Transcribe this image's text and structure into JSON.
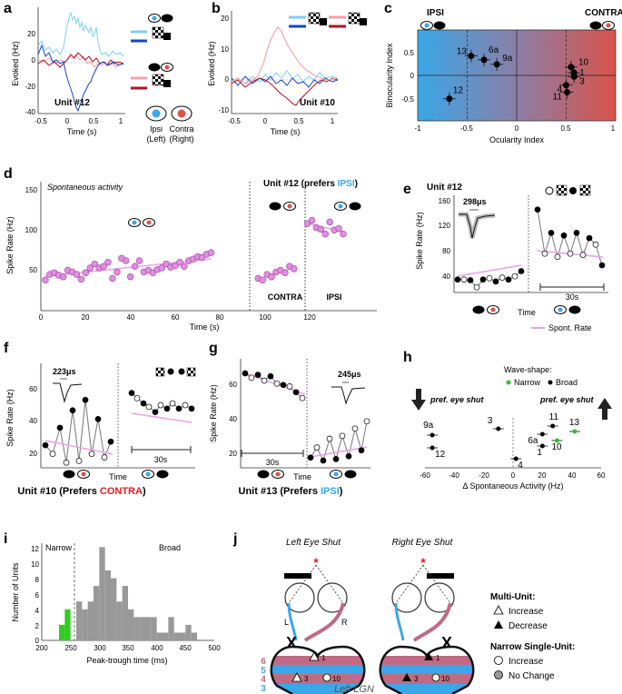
{
  "panels": {
    "a": {
      "letter": "a",
      "unit": "Unit #12",
      "ylabel": "Evoked (Hz)",
      "xlabel": "Time (s)",
      "yticks": [
        "20",
        "0",
        "-20",
        "-40"
      ],
      "xticks": [
        "-0.5",
        "0",
        "0.5",
        "1"
      ],
      "legend_ipsi": "Ipsi",
      "legend_ipsi_sub": "(Left)",
      "legend_contra": "Contra",
      "legend_contra_sub": "(Right)"
    },
    "b": {
      "letter": "b",
      "unit": "Unit #10",
      "ylabel": "Evoked (Hz)",
      "xlabel": "Time (s)",
      "yticks": [
        "20",
        "10",
        "0",
        "-10"
      ],
      "xticks": [
        "-0.5",
        "0",
        "0.5",
        "1"
      ]
    },
    "c": {
      "letter": "c",
      "ipsi": "IPSI",
      "contra": "CONTRA",
      "ylabel": "Binocularity Index",
      "xlabel": "Ocularity Index",
      "yticks": [
        "0.5",
        "0",
        "-0.5"
      ],
      "xticks": [
        "-1",
        "-0.5",
        "0",
        "0.5",
        "1"
      ]
    },
    "d": {
      "letter": "d",
      "spont": "Spontaneous activity",
      "unit_title": "Unit #12 (prefers ",
      "unit_ipsi": "IPSI",
      "unit_close": ")",
      "ylabel": "Spike Rate (Hz)",
      "xlabel": "Time (s)",
      "contra": "CONTRA",
      "ipsi": "IPSI",
      "yticks": [
        "150",
        "100",
        "50"
      ],
      "xticks": [
        "0",
        "20",
        "40",
        "60",
        "80",
        "100",
        "120"
      ]
    },
    "e": {
      "letter": "e",
      "unit": "Unit #12",
      "wave": "298",
      "wave_unit": "μs",
      "ylabel": "Spike Rate (Hz)",
      "yticks": [
        "160",
        "120",
        "80",
        "40"
      ],
      "time": "Time",
      "scale": "30s",
      "legend": "Spont. Rate"
    },
    "f": {
      "letter": "f",
      "wave": "223",
      "wave_unit": "μs",
      "ylabel": "Spike Rate (Hz)",
      "yticks": [
        "60",
        "40",
        "20"
      ],
      "time": "Time",
      "scale": "30s",
      "caption": "Unit #10 (Prefers ",
      "caption_hl": "CONTRA",
      "caption_close": ")"
    },
    "g": {
      "letter": "g",
      "wave": "245",
      "wave_unit": "μs",
      "ylabel": "Spike Rate (Hz)",
      "yticks": [
        "60",
        "40",
        "20"
      ],
      "time": "Time",
      "scale": "30s",
      "caption": "Unit #13 (Prefers ",
      "caption_hl": "IPSI",
      "caption_close": ")"
    },
    "h": {
      "letter": "h",
      "wave_title": "Wave-shape:",
      "narrow": "Narrow",
      "broad": "Broad",
      "left": "pref. eye shut",
      "right": "pref. eye shut",
      "xlabel": "Δ Spontaneous Activity (Hz)",
      "xticks": [
        "-60",
        "-40",
        "-20",
        "0",
        "20",
        "40",
        "60"
      ]
    },
    "i": {
      "letter": "i",
      "ylabel": "Number of Units",
      "xlabel": "Peak-trough time (ms)",
      "narrow": "Narrow",
      "broad": "Broad",
      "yticks": [
        "0",
        "2",
        "4",
        "6",
        "8",
        "10",
        "12"
      ],
      "xticks": [
        "200",
        "250",
        "300",
        "350",
        "400",
        "450",
        "500"
      ]
    },
    "j": {
      "letter": "j",
      "left_title": "Left Eye Shut",
      "right_title": "Right Eye Shut",
      "lgn": "Left LGN",
      "l": "L",
      "r": "R",
      "star": "*",
      "layers": [
        "6",
        "5",
        "4",
        "3",
        "2",
        "1"
      ],
      "multi_title": "Multi-Unit:",
      "increase": "Increase",
      "decrease": "Decrease",
      "narrow_title": "Narrow Single-Unit:",
      "increase2": "Increase",
      "nochange": "No Change"
    }
  },
  "chart_data": [
    {
      "id": "c",
      "type": "scatter",
      "title": "",
      "xlabel": "Ocularity Index",
      "ylabel": "Binocularity Index",
      "xlim": [
        -1,
        1
      ],
      "ylim": [
        -0.7,
        0.7
      ],
      "labels": [
        "13",
        "6a",
        "9a",
        "12",
        "10",
        "1",
        "4",
        "3",
        "11"
      ],
      "x": [
        -0.46,
        -0.33,
        -0.2,
        -0.68,
        0.55,
        0.58,
        0.5,
        0.58,
        0.51
      ],
      "y": [
        0.3,
        0.24,
        0.17,
        -0.36,
        0.13,
        0.04,
        -0.15,
        -0.02,
        -0.26
      ]
    },
    {
      "id": "h",
      "type": "scatter",
      "xlabel": "Δ Spontaneous Activity (Hz)",
      "xlim": [
        -60,
        60
      ],
      "labels": [
        "9a",
        "12",
        "3",
        "4",
        "11",
        "6a",
        "10",
        "1",
        "13"
      ],
      "x": [
        -55,
        -55,
        -10,
        2,
        27,
        20,
        30,
        20,
        42
      ],
      "y": [
        0.4,
        -0.3,
        0.75,
        -0.9,
        0.9,
        0.45,
        0.1,
        -0.2,
        0.6
      ],
      "wave": [
        "broad",
        "broad",
        "broad",
        "broad",
        "broad",
        "broad",
        "narrow",
        "broad",
        "narrow"
      ]
    },
    {
      "id": "i",
      "type": "bar",
      "xlabel": "Peak-trough time (ms)",
      "ylabel": "Number of Units",
      "xlim": [
        200,
        500
      ],
      "ylim": [
        0,
        12
      ],
      "bin_width": 10,
      "bin_starts": [
        230,
        240,
        260,
        270,
        280,
        290,
        300,
        310,
        320,
        330,
        340,
        350,
        360,
        370,
        380,
        390,
        400,
        410,
        420,
        430,
        440,
        450,
        460
      ],
      "values": [
        2,
        4,
        5,
        4,
        5,
        7,
        12,
        9,
        8,
        5,
        7,
        4,
        3,
        3,
        3,
        3,
        1,
        1,
        3,
        1,
        1,
        2,
        1
      ],
      "narrow_cut": 250
    },
    {
      "id": "d",
      "type": "scatter",
      "xlabel": "Time (s)",
      "ylabel": "Spike Rate (Hz)",
      "xlim": [
        0,
        140
      ],
      "ylim": [
        0,
        160
      ],
      "series": [
        {
          "name": "spont",
          "x": [
            2,
            4,
            6,
            8,
            10,
            12,
            14,
            16,
            18,
            20,
            22,
            24,
            26,
            28,
            30,
            32,
            34,
            36,
            38,
            40,
            42,
            44,
            46,
            48,
            50,
            52,
            54,
            56,
            58,
            60,
            62,
            64,
            66,
            68,
            70,
            72,
            74,
            76
          ],
          "values": [
            38,
            45,
            47,
            44,
            42,
            50,
            48,
            45,
            39,
            47,
            53,
            58,
            53,
            55,
            60,
            40,
            48,
            65,
            62,
            42,
            55,
            62,
            48,
            50,
            47,
            51,
            53,
            58,
            54,
            56,
            60,
            55,
            62,
            64,
            67,
            66,
            70,
            72
          ]
        },
        {
          "name": "contra",
          "x": [
            97,
            99,
            101,
            103,
            105,
            107,
            109,
            111,
            113
          ],
          "values": [
            40,
            38,
            45,
            42,
            48,
            50,
            47,
            55,
            52
          ]
        },
        {
          "name": "ipsi",
          "x": [
            119,
            121,
            123,
            125,
            127,
            129,
            131,
            133,
            135
          ],
          "values": [
            108,
            112,
            103,
            101,
            95,
            110,
            100,
            102,
            95
          ]
        }
      ]
    }
  ]
}
